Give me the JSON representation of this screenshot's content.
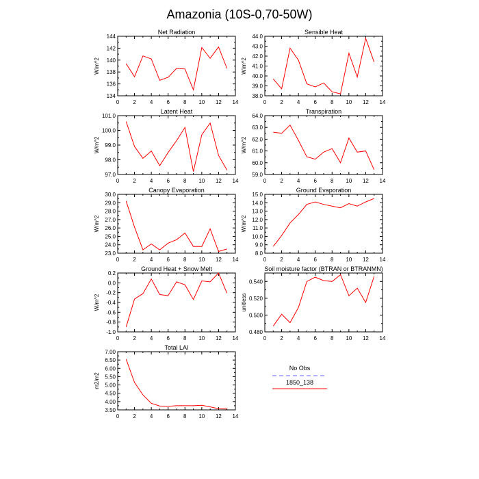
{
  "page_title": "Amazonia (10S-0,70-50W)",
  "colors": {
    "series": "#ff0000",
    "obs": "#8080ff",
    "axis": "#000000"
  },
  "legend": [
    {
      "label": "No Obs",
      "color": "#8080ff",
      "dashed": true
    },
    {
      "label": "1850_138",
      "color": "#ff0000",
      "dashed": false
    }
  ],
  "chart_data": [
    {
      "type": "line",
      "title": "Net Radiation",
      "ylabel": "W/m^2",
      "xlim": [
        0,
        14
      ],
      "xticks": [
        0,
        2,
        4,
        6,
        8,
        10,
        12,
        14
      ],
      "ylim": [
        134,
        144
      ],
      "yticks": [
        134,
        136,
        138,
        140,
        142,
        144
      ],
      "ytick_labels": [
        "134",
        "136",
        "138",
        "140",
        "142",
        "144"
      ],
      "x": [
        1,
        2,
        3,
        4,
        5,
        6,
        7,
        8,
        9,
        10,
        11,
        12,
        13
      ],
      "series": [
        {
          "name": "1850_138",
          "values": [
            139.4,
            137.2,
            140.7,
            140.2,
            136.6,
            137.1,
            138.6,
            138.5,
            135.0,
            142.1,
            140.3,
            142.2,
            138.6
          ]
        }
      ]
    },
    {
      "type": "line",
      "title": "Sensible Heat",
      "ylabel": "W/m^2",
      "xlim": [
        0,
        14
      ],
      "xticks": [
        0,
        2,
        4,
        6,
        8,
        10,
        12,
        14
      ],
      "ylim": [
        38,
        44
      ],
      "yticks": [
        38,
        39,
        40,
        41,
        42,
        43,
        44
      ],
      "ytick_labels": [
        "38.0",
        "39.0",
        "40.0",
        "41.0",
        "42.0",
        "43.0",
        "44.0"
      ],
      "x": [
        1,
        2,
        3,
        4,
        5,
        6,
        7,
        8,
        9,
        10,
        11,
        12,
        13
      ],
      "series": [
        {
          "name": "1850_138",
          "values": [
            39.7,
            38.7,
            42.8,
            41.6,
            39.2,
            38.9,
            39.3,
            38.4,
            38.2,
            42.3,
            39.9,
            43.8,
            41.4
          ]
        }
      ]
    },
    {
      "type": "line",
      "title": "Latent Heat",
      "ylabel": "W/m^2",
      "xlim": [
        0,
        14
      ],
      "xticks": [
        0,
        2,
        4,
        6,
        8,
        10,
        12,
        14
      ],
      "ylim": [
        97,
        101
      ],
      "yticks": [
        97,
        98,
        99,
        100,
        101
      ],
      "ytick_labels": [
        "97.0",
        "98.0",
        "99.0",
        "100.0",
        "101.0"
      ],
      "x": [
        1,
        2,
        3,
        4,
        5,
        6,
        7,
        8,
        9,
        10,
        11,
        12,
        13
      ],
      "series": [
        {
          "name": "1850_138",
          "values": [
            100.6,
            98.9,
            98.1,
            98.6,
            97.6,
            98.5,
            99.3,
            100.2,
            97.2,
            99.7,
            100.5,
            98.3,
            97.3
          ]
        }
      ]
    },
    {
      "type": "line",
      "title": "Transpiration",
      "ylabel": "W/m^2",
      "xlim": [
        0,
        14
      ],
      "xticks": [
        0,
        2,
        4,
        6,
        8,
        10,
        12,
        14
      ],
      "ylim": [
        59,
        64
      ],
      "yticks": [
        59,
        60,
        61,
        62,
        63,
        64
      ],
      "ytick_labels": [
        "59.0",
        "60.0",
        "61.0",
        "62.0",
        "63.0",
        "64.0"
      ],
      "x": [
        1,
        2,
        3,
        4,
        5,
        6,
        7,
        8,
        9,
        10,
        11,
        12,
        13
      ],
      "series": [
        {
          "name": "1850_138",
          "values": [
            62.6,
            62.5,
            63.2,
            61.9,
            60.5,
            60.3,
            60.9,
            61.2,
            60.0,
            62.1,
            60.9,
            61.0,
            59.4
          ]
        }
      ]
    },
    {
      "type": "line",
      "title": "Canopy Evaporation",
      "ylabel": "W/m^2",
      "xlim": [
        0,
        14
      ],
      "xticks": [
        0,
        2,
        4,
        6,
        8,
        10,
        12,
        14
      ],
      "ylim": [
        23,
        30
      ],
      "yticks": [
        23,
        24,
        25,
        26,
        27,
        28,
        29,
        30
      ],
      "ytick_labels": [
        "23.0",
        "24.0",
        "25.0",
        "26.0",
        "27.0",
        "28.0",
        "29.0",
        "30.0"
      ],
      "x": [
        1,
        2,
        3,
        4,
        5,
        6,
        7,
        8,
        9,
        10,
        11,
        12,
        13
      ],
      "series": [
        {
          "name": "1850_138",
          "values": [
            29.2,
            26.1,
            23.4,
            24.1,
            23.4,
            24.2,
            24.6,
            25.4,
            23.8,
            23.8,
            25.9,
            23.2,
            23.5
          ]
        }
      ]
    },
    {
      "type": "line",
      "title": "Ground Evaporation",
      "ylabel": "W/m^2",
      "xlim": [
        0,
        14
      ],
      "xticks": [
        0,
        2,
        4,
        6,
        8,
        10,
        12,
        14
      ],
      "ylim": [
        8,
        15
      ],
      "yticks": [
        8,
        9,
        10,
        11,
        12,
        13,
        14,
        15
      ],
      "ytick_labels": [
        "8.0",
        "9.0",
        "10.0",
        "11.0",
        "12.0",
        "13.0",
        "14.0",
        "15.0"
      ],
      "x": [
        1,
        2,
        3,
        4,
        5,
        6,
        7,
        8,
        9,
        10,
        11,
        12,
        13
      ],
      "series": [
        {
          "name": "1850_138",
          "values": [
            8.8,
            10.1,
            11.6,
            12.6,
            13.8,
            14.1,
            13.8,
            13.6,
            13.4,
            13.9,
            13.6,
            14.1,
            14.5
          ]
        }
      ]
    },
    {
      "type": "line",
      "title": "Ground Heat + Snow Melt",
      "ylabel": "W/m^2",
      "xlim": [
        0,
        14
      ],
      "xticks": [
        0,
        2,
        4,
        6,
        8,
        10,
        12,
        14
      ],
      "ylim": [
        -1.0,
        0.2
      ],
      "yticks": [
        -1.0,
        -0.8,
        -0.6,
        -0.4,
        -0.2,
        0.0,
        0.2
      ],
      "ytick_labels": [
        "-1.0",
        "-0.8",
        "-0.6",
        "-0.4",
        "-0.2",
        "0.0",
        "0.2"
      ],
      "x": [
        1,
        2,
        3,
        4,
        5,
        6,
        7,
        8,
        9,
        10,
        11,
        12,
        13
      ],
      "series": [
        {
          "name": "1850_138",
          "values": [
            -0.9,
            -0.33,
            -0.22,
            0.08,
            -0.24,
            -0.26,
            0.02,
            -0.04,
            -0.34,
            0.04,
            0.02,
            0.2,
            -0.21
          ]
        }
      ]
    },
    {
      "type": "line",
      "title": "Soil moisture factor (BTRAN or BTRANMN)",
      "ylabel": "unitless",
      "xlim": [
        0,
        14
      ],
      "xticks": [
        0,
        2,
        4,
        6,
        8,
        10,
        12,
        14
      ],
      "ylim": [
        0.48,
        0.55
      ],
      "yticks": [
        0.48,
        0.5,
        0.52,
        0.54
      ],
      "ytick_labels": [
        "0.480",
        "0.500",
        "0.520",
        "0.540"
      ],
      "x": [
        1,
        2,
        3,
        4,
        5,
        6,
        7,
        8,
        9,
        10,
        11,
        12,
        13
      ],
      "series": [
        {
          "name": "1850_138",
          "values": [
            0.487,
            0.501,
            0.491,
            0.509,
            0.54,
            0.545,
            0.541,
            0.54,
            0.548,
            0.523,
            0.532,
            0.515,
            0.546
          ]
        }
      ]
    },
    {
      "type": "line",
      "title": "Total LAI",
      "ylabel": "m2/m2",
      "xlim": [
        0,
        14
      ],
      "xticks": [
        0,
        2,
        4,
        6,
        8,
        10,
        12,
        14
      ],
      "ylim": [
        3.5,
        7.0
      ],
      "yticks": [
        3.5,
        4.0,
        4.5,
        5.0,
        5.5,
        6.0,
        6.5,
        7.0
      ],
      "ytick_labels": [
        "3.50",
        "4.00",
        "4.50",
        "5.00",
        "5.50",
        "6.00",
        "6.50",
        "7.00"
      ],
      "x": [
        1,
        2,
        3,
        4,
        5,
        6,
        7,
        8,
        9,
        10,
        11,
        12,
        13
      ],
      "series": [
        {
          "name": "1850_138",
          "values": [
            6.55,
            5.15,
            4.4,
            3.9,
            3.73,
            3.72,
            3.75,
            3.75,
            3.75,
            3.78,
            3.68,
            3.57,
            3.55
          ]
        }
      ]
    }
  ]
}
